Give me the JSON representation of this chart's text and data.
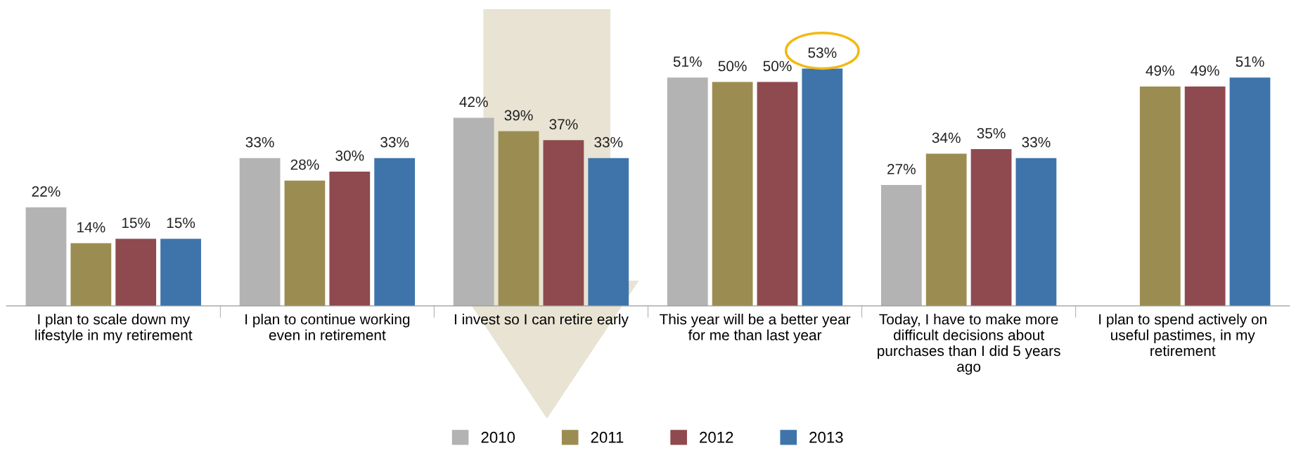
{
  "chart_data": {
    "type": "bar",
    "categories": [
      "I plan to scale down my lifestyle in my retirement",
      "I plan to continue working even in retirement",
      "I invest so I can retire early",
      "This year will be a better year for me than last year",
      "Today, I have to make more difficult decisions about purchases than I did 5 years ago",
      "I plan to spend actively on useful pastimes, in my retirement"
    ],
    "series": [
      {
        "name": "2010",
        "color": "#b3b3b3",
        "values": [
          22,
          33,
          42,
          51,
          27,
          null
        ],
        "value_labels": [
          "22%",
          "33%",
          "42%",
          "51%",
          "27%",
          null
        ]
      },
      {
        "name": "2011",
        "color": "#9b8d52",
        "values": [
          14,
          28,
          39,
          50,
          34,
          49
        ],
        "value_labels": [
          "14%",
          "28%",
          "39%",
          "50%",
          "34%",
          "49%"
        ]
      },
      {
        "name": "2012",
        "color": "#8e4a4f",
        "values": [
          15,
          30,
          37,
          50,
          35,
          49
        ],
        "value_labels": [
          "15%",
          "30%",
          "37%",
          "50%",
          "35%",
          "49%"
        ]
      },
      {
        "name": "2013",
        "color": "#3e74aa",
        "values": [
          15,
          33,
          33,
          53,
          33,
          51
        ],
        "value_labels": [
          "15%",
          "33%",
          "33%",
          "53%",
          "33%",
          "51%"
        ]
      }
    ],
    "legend": "bottom"
  }
}
